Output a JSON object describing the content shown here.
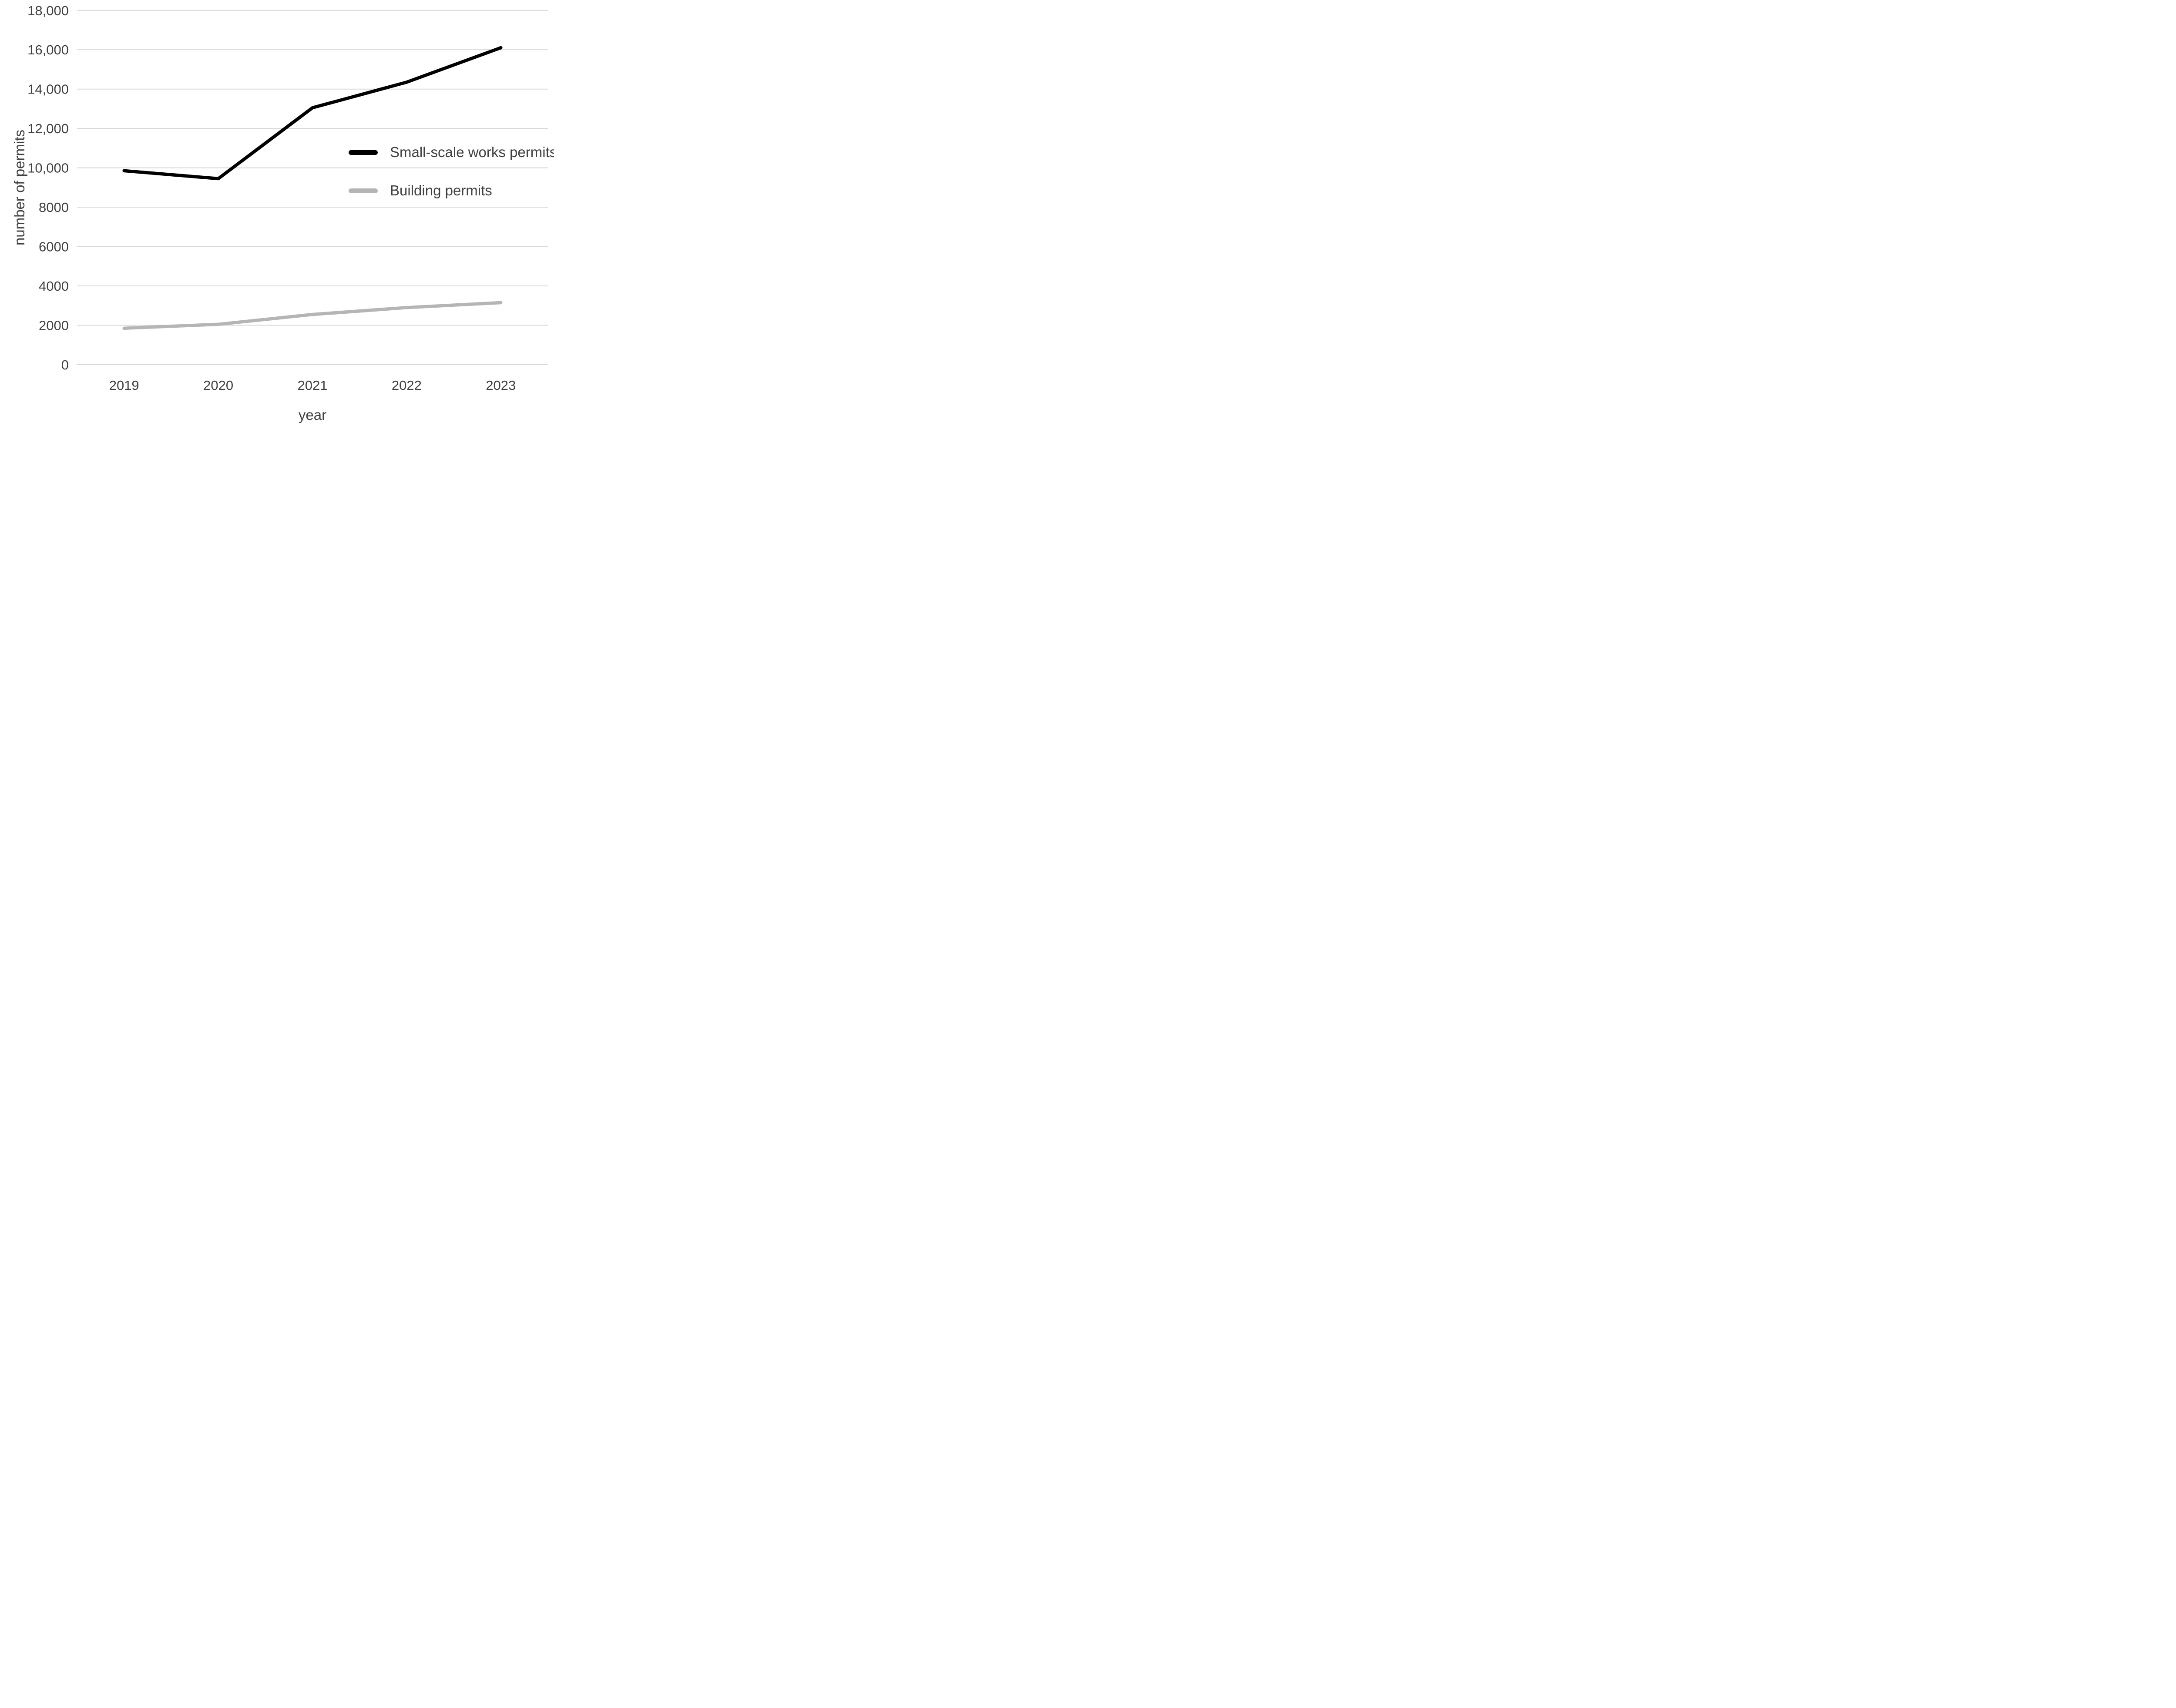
{
  "figure": {
    "background": "#ffffff",
    "text_color": "#404040",
    "gridline_color": "#d9d9d9"
  },
  "chart_data": {
    "type": "line",
    "title": "",
    "xlabel": "year",
    "ylabel": "number of permits",
    "categories": [
      "2019",
      "2020",
      "2021",
      "2022",
      "2023"
    ],
    "series": [
      {
        "name": "Small-scale works permits",
        "color": "#000000",
        "values": [
          9850,
          9450,
          13050,
          14350,
          16100
        ]
      },
      {
        "name": "Building permits",
        "color": "#b5b5b5",
        "values": [
          1850,
          2050,
          2550,
          2900,
          3150
        ]
      }
    ],
    "ylim": [
      0,
      18000
    ],
    "ytick_step": 2000,
    "ytick_labels": [
      "0",
      "2000",
      "4000",
      "6000",
      "8000",
      "10,000",
      "12,000",
      "14,000",
      "16,000",
      "18,000"
    ],
    "grid": "horizontal",
    "legend_position": "center-right"
  }
}
